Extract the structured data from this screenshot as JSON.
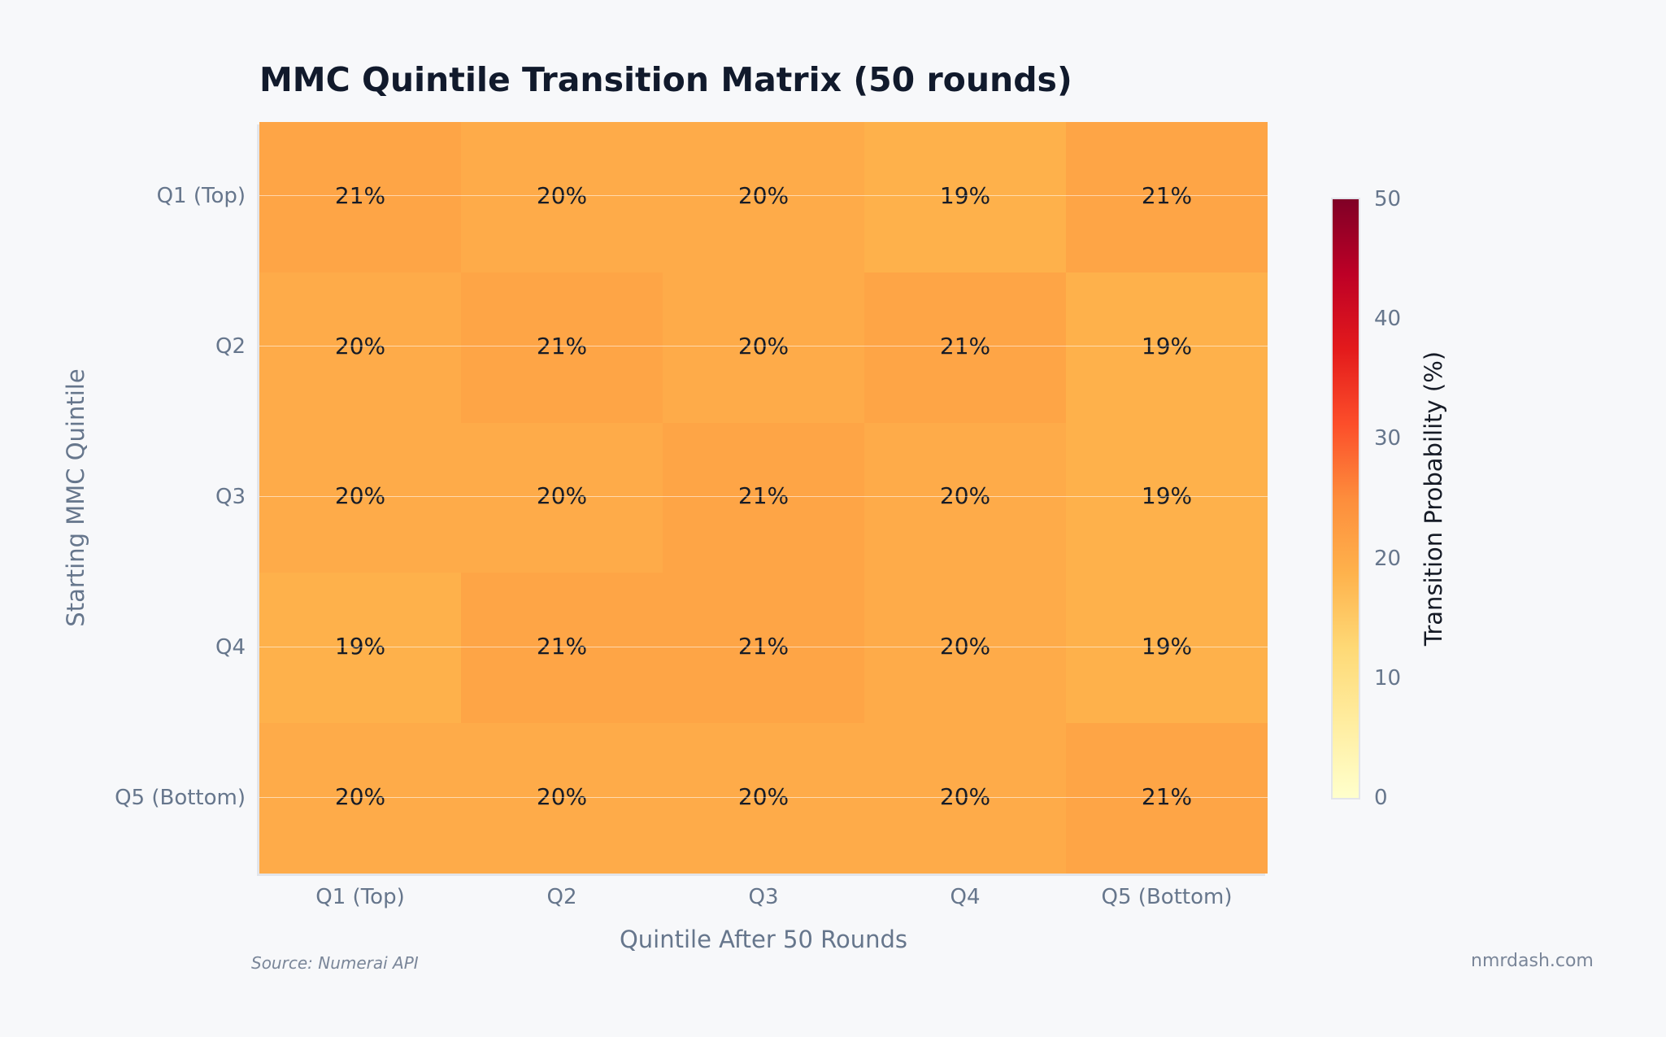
{
  "header": {
    "title": "MMC Quintile Transition Matrix (50 rounds)"
  },
  "footer": {
    "source": "Source: Numerai API",
    "brand": "nmrdash.com"
  },
  "colorbar": {
    "label": "Transition Probability (%)",
    "ticks": [
      "50",
      "40",
      "30",
      "20",
      "10",
      "0"
    ],
    "range": [
      0,
      50
    ],
    "colors": [
      "#800026",
      "#bd0026",
      "#e31a1c",
      "#fc4e2a",
      "#fd8d3c",
      "#feb24c",
      "#fed976",
      "#ffeda0",
      "#ffffcc"
    ]
  },
  "chart_data": {
    "type": "heatmap",
    "title": "MMC Quintile Transition Matrix (50 rounds)",
    "xlabel": "Quintile After 50 Rounds",
    "ylabel": "Starting MMC Quintile",
    "x_categories": [
      "Q1 (Top)",
      "Q2",
      "Q3",
      "Q4",
      "Q5 (Bottom)"
    ],
    "y_categories": [
      "Q1 (Top)",
      "Q2",
      "Q3",
      "Q4",
      "Q5 (Bottom)"
    ],
    "values": [
      [
        21,
        20,
        20,
        19,
        21
      ],
      [
        20,
        21,
        20,
        21,
        19
      ],
      [
        20,
        20,
        21,
        20,
        19
      ],
      [
        19,
        21,
        21,
        20,
        19
      ],
      [
        20,
        20,
        20,
        20,
        21
      ]
    ],
    "labels": [
      [
        "21%",
        "20%",
        "20%",
        "19%",
        "21%"
      ],
      [
        "20%",
        "21%",
        "20%",
        "21%",
        "19%"
      ],
      [
        "20%",
        "20%",
        "21%",
        "20%",
        "19%"
      ],
      [
        "19%",
        "21%",
        "21%",
        "20%",
        "19%"
      ],
      [
        "20%",
        "20%",
        "20%",
        "20%",
        "21%"
      ]
    ],
    "colorscale": "YlOrRd",
    "zlim": [
      0,
      50
    ],
    "colorbar_title": "Transition Probability (%)",
    "colorbar_ticks": [
      0,
      10,
      20,
      30,
      40,
      50
    ]
  }
}
